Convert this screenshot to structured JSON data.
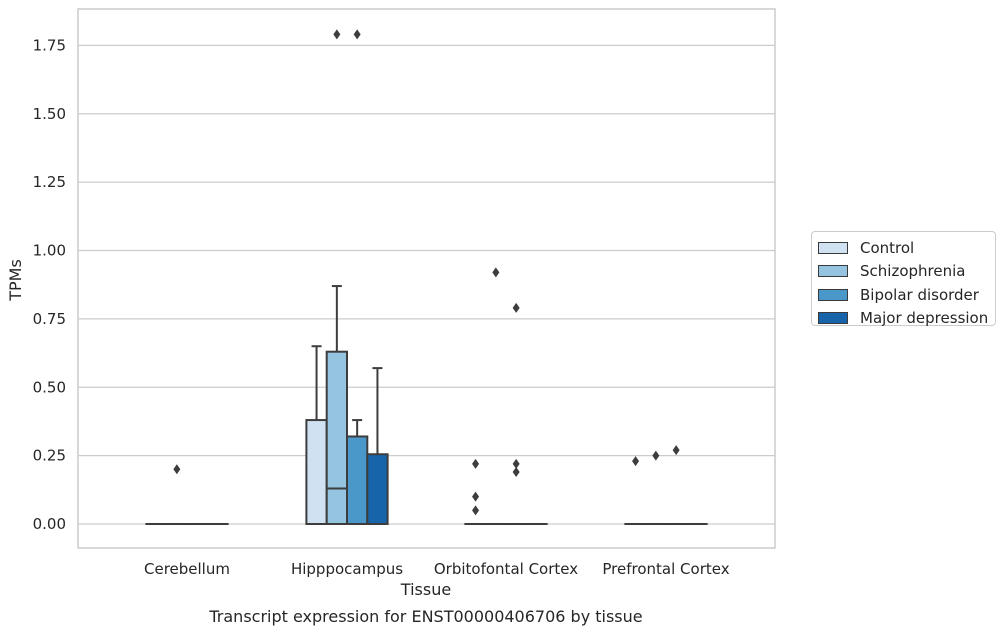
{
  "chart_data": {
    "type": "box",
    "xlabel": "Tissue",
    "ylabel": "TPMs",
    "caption": "Transcript expression for ENST00000406706 by tissue",
    "categories": [
      "Cerebellum",
      "Hipppocampus",
      "Orbitofontal Cortex",
      "Prefrontal Cortex"
    ],
    "yticks": [
      "0.00",
      "0.25",
      "0.50",
      "0.75",
      "1.00",
      "1.25",
      "1.50",
      "1.75"
    ],
    "ylim": [
      -0.09,
      1.88
    ],
    "grid": true,
    "legend_position": "right",
    "series": [
      {
        "name": "Control",
        "color": "#d0e1f2",
        "boxes": [
          {
            "q1": 0,
            "median": 0,
            "q3": 0,
            "whisker_low": 0,
            "whisker_high": 0,
            "outliers": []
          },
          {
            "q1": 0,
            "median": 0,
            "q3": 0.38,
            "whisker_low": 0,
            "whisker_high": 0.65,
            "outliers": []
          },
          {
            "q1": 0,
            "median": 0,
            "q3": 0,
            "whisker_low": 0,
            "whisker_high": 0,
            "outliers": [
              0.22,
              0.1,
              0.05
            ]
          },
          {
            "q1": 0,
            "median": 0,
            "q3": 0,
            "whisker_low": 0,
            "whisker_high": 0,
            "outliers": [
              0.23
            ]
          }
        ]
      },
      {
        "name": "Schizophrenia",
        "color": "#94c4df",
        "boxes": [
          {
            "q1": 0,
            "median": 0,
            "q3": 0,
            "whisker_low": 0,
            "whisker_high": 0,
            "outliers": [
              0.2
            ]
          },
          {
            "q1": 0,
            "median": 0.13,
            "q3": 0.63,
            "whisker_low": 0,
            "whisker_high": 0.87,
            "outliers": [
              1.79
            ]
          },
          {
            "q1": 0,
            "median": 0,
            "q3": 0,
            "whisker_low": 0,
            "whisker_high": 0,
            "outliers": [
              0.92
            ]
          },
          {
            "q1": 0,
            "median": 0,
            "q3": 0,
            "whisker_low": 0,
            "whisker_high": 0,
            "outliers": [
              0.25
            ]
          }
        ]
      },
      {
        "name": "Bipolar disorder",
        "color": "#4a98c9",
        "boxes": [
          {
            "q1": 0,
            "median": 0,
            "q3": 0,
            "whisker_low": 0,
            "whisker_high": 0,
            "outliers": []
          },
          {
            "q1": 0,
            "median": 0,
            "q3": 0.32,
            "whisker_low": 0,
            "whisker_high": 0.38,
            "outliers": [
              1.79
            ]
          },
          {
            "q1": 0,
            "median": 0,
            "q3": 0,
            "whisker_low": 0,
            "whisker_high": 0,
            "outliers": [
              0.79,
              0.22,
              0.19
            ]
          },
          {
            "q1": 0,
            "median": 0,
            "q3": 0,
            "whisker_low": 0,
            "whisker_high": 0,
            "outliers": [
              0.27
            ]
          }
        ]
      },
      {
        "name": "Major depression",
        "color": "#1764ab",
        "boxes": [
          {
            "q1": 0,
            "median": 0,
            "q3": 0,
            "whisker_low": 0,
            "whisker_high": 0,
            "outliers": []
          },
          {
            "q1": 0,
            "median": 0,
            "q3": 0.255,
            "whisker_low": 0,
            "whisker_high": 0.57,
            "outliers": []
          },
          {
            "q1": 0,
            "median": 0,
            "q3": 0,
            "whisker_low": 0,
            "whisker_high": 0,
            "outliers": []
          },
          {
            "q1": 0,
            "median": 0,
            "q3": 0,
            "whisker_low": 0,
            "whisker_high": 0,
            "outliers": []
          }
        ]
      }
    ]
  }
}
